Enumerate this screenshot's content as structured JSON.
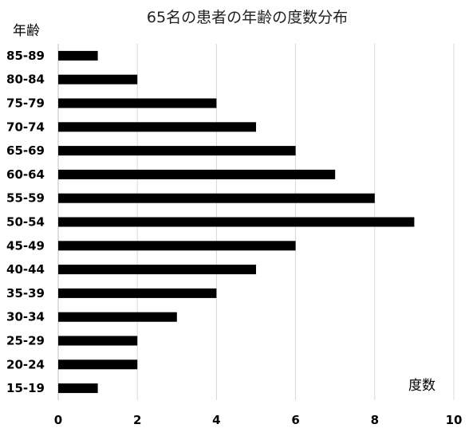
{
  "chart_data": {
    "type": "bar",
    "orientation": "horizontal",
    "title": "65名の患者の年齢の度数分布",
    "ylabel": "年齢",
    "xlabel": "度数",
    "categories": [
      "15-19",
      "20-24",
      "25-29",
      "30-34",
      "35-39",
      "40-44",
      "45-49",
      "50-54",
      "55-59",
      "60-64",
      "65-69",
      "70-74",
      "75-79",
      "80-84",
      "85-89"
    ],
    "values": [
      1,
      2,
      2,
      3,
      4,
      5,
      6,
      9,
      8,
      7,
      6,
      5,
      4,
      2,
      1
    ],
    "xlim": [
      0,
      10
    ],
    "xticks": [
      0,
      2,
      4,
      6,
      8,
      10
    ],
    "grid": true,
    "bar_color": "#000000",
    "grid_color": "#d9d9d9"
  }
}
